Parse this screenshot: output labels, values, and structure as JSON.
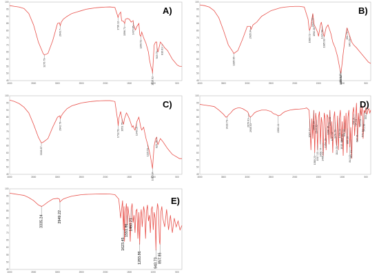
{
  "colors": {
    "spectrum": "#e8504a",
    "frame": "#b9b9b9",
    "text": "#000000"
  },
  "chart_data": [
    {
      "type": "line",
      "panel_label": "A)",
      "xlim": [
        4000,
        400
      ],
      "ylim": [
        45,
        100
      ],
      "x_ticks": [
        "4000",
        "3500",
        "3000",
        "2500",
        "2000",
        "1500",
        "1000",
        "500"
      ],
      "y_ticks": [
        "100",
        "95",
        "90",
        "85",
        "80",
        "75",
        "70",
        "65",
        "60",
        "55",
        "50",
        "45"
      ],
      "series": [
        {
          "x": [
            4000,
            3900,
            3800,
            3700,
            3600,
            3500,
            3400,
            3300,
            3276,
            3200,
            3100,
            3000,
            2960,
            2943,
            2920,
            2880,
            2800,
            2700,
            2600,
            2500,
            2400,
            2300,
            2200,
            2100,
            2000,
            1900,
            1800,
            1740,
            1736,
            1720,
            1680,
            1660,
            1620,
            1596,
            1580,
            1540,
            1500,
            1460,
            1420,
            1410,
            1390,
            1370,
            1340,
            1300,
            1280,
            1260,
            1240,
            1200,
            1150,
            1100,
            1080,
            1050,
            1020,
            1015,
            1000,
            980,
            950,
            925,
            920,
            900,
            850,
            800,
            760,
            700,
            650,
            600,
            550,
            500,
            450,
            400
          ],
          "y": [
            97.5,
            97,
            96.5,
            95.5,
            92,
            84,
            72,
            64,
            63,
            64,
            73,
            85,
            85.5,
            83.5,
            86,
            88,
            90,
            92,
            93,
            94,
            95,
            95.5,
            96,
            96.3,
            96.5,
            96.6,
            96.2,
            90,
            89,
            91,
            93,
            87,
            86.5,
            85,
            88,
            88.5,
            88,
            86,
            87,
            84,
            82,
            80.5,
            83,
            85,
            77,
            76,
            79,
            75,
            71,
            65,
            60,
            55,
            52,
            50,
            58,
            70,
            72,
            72,
            68,
            65,
            72,
            70,
            68,
            66,
            63,
            60,
            58,
            56,
            55,
            55
          ]
        }
      ],
      "peak_labels": [
        "3276.79",
        "2943.7",
        "1736.12",
        "1596.71",
        "1415.85",
        "1260.51",
        "1015.92",
        "919.76",
        "816.61"
      ]
    },
    {
      "type": "line",
      "panel_label": "B)",
      "xlim": [
        4000,
        400
      ],
      "ylim": [
        45,
        100
      ],
      "x_ticks": [
        "4000",
        "3500",
        "3000",
        "2500",
        "2000",
        "1500",
        "1000",
        "500"
      ],
      "y_ticks": [
        "100",
        "95",
        "90",
        "85",
        "80",
        "75",
        "70",
        "65",
        "60",
        "55",
        "50",
        "45"
      ],
      "series": [
        {
          "x": [
            4000,
            3900,
            3800,
            3700,
            3600,
            3500,
            3400,
            3300,
            3285,
            3200,
            3100,
            3000,
            2935,
            2920,
            2880,
            2800,
            2700,
            2600,
            2500,
            2400,
            2300,
            2200,
            2100,
            2000,
            1900,
            1800,
            1720,
            1700,
            1690,
            1660,
            1640,
            1620,
            1590,
            1560,
            1520,
            1500,
            1460,
            1440,
            1420,
            1400,
            1380,
            1340,
            1300,
            1260,
            1240,
            1200,
            1150,
            1100,
            1060,
            1030,
            1020,
            1000,
            980,
            950,
            920,
            900,
            880,
            860,
            840,
            800,
            760,
            700,
            650,
            600,
            550,
            500,
            450,
            400
          ],
          "y": [
            98,
            97.5,
            96.5,
            94,
            89,
            80,
            70,
            65,
            64,
            66,
            74,
            83,
            83,
            81,
            84,
            86,
            90,
            92,
            94,
            95,
            96,
            96.5,
            96.8,
            97,
            97,
            96.5,
            88,
            82,
            80,
            83,
            88,
            92,
            84,
            82,
            79,
            76,
            84,
            86,
            82,
            78,
            76,
            82,
            84,
            80,
            78,
            72,
            68,
            62,
            55,
            50,
            52,
            58,
            64,
            72,
            78,
            82,
            80,
            78,
            76,
            72,
            70,
            68,
            66,
            64,
            62,
            60,
            58,
            57
          ]
        }
      ],
      "peak_labels": [
        "3285.95",
        "2935.04",
        "1689.72",
        "1623.59",
        "1592.28",
        "1424.58",
        "1385.93",
        "1044.18",
        "1026.46",
        "1023.53",
        "894.73",
        "846.29"
      ]
    },
    {
      "type": "line",
      "panel_label": "C)",
      "xlim": [
        4000,
        400
      ],
      "ylim": [
        45,
        100
      ],
      "x_ticks": [
        "4000",
        "3500",
        "3000",
        "2500",
        "2000",
        "1500",
        "1000",
        "500"
      ],
      "y_ticks": [
        "100",
        "95",
        "90",
        "85",
        "80",
        "75",
        "70",
        "65",
        "60",
        "55",
        "50",
        "45"
      ],
      "series": [
        {
          "x": [
            4000,
            3900,
            3800,
            3700,
            3600,
            3500,
            3400,
            3338,
            3300,
            3200,
            3100,
            3000,
            2950,
            2942,
            2920,
            2880,
            2800,
            2700,
            2600,
            2500,
            2400,
            2300,
            2200,
            2100,
            2000,
            1900,
            1800,
            1740,
            1732,
            1720,
            1680,
            1660,
            1640,
            1620,
            1600,
            1560,
            1540,
            1500,
            1460,
            1440,
            1420,
            1400,
            1380,
            1360,
            1340,
            1300,
            1260,
            1240,
            1200,
            1150,
            1100,
            1060,
            1030,
            1015,
            1000,
            980,
            950,
            925,
            920,
            900,
            850,
            800,
            760,
            700,
            650,
            600,
            550,
            500,
            450,
            400
          ],
          "y": [
            97,
            96,
            94.5,
            92,
            88,
            80,
            71,
            67,
            67.5,
            70,
            78,
            85,
            86,
            84,
            86,
            88,
            91,
            93,
            94,
            95,
            95.5,
            96,
            96.3,
            96.5,
            96.6,
            96.6,
            96,
            82,
            79,
            84,
            89,
            85,
            82,
            80,
            84,
            88,
            87,
            84,
            80,
            78,
            79,
            77,
            76,
            79,
            82,
            85,
            78,
            76,
            78,
            70,
            64,
            58,
            52,
            49,
            56,
            65,
            70,
            71,
            68,
            66,
            70,
            68,
            66,
            63,
            61,
            59,
            58,
            57,
            56,
            56
          ]
        }
      ],
      "peak_labels": [
        "3336.87",
        "2942.79",
        "1732.51",
        "1651.75",
        "1349.15",
        "1115.53",
        "1015.84",
        "925.75"
      ]
    },
    {
      "type": "line",
      "panel_label": "D)",
      "xlim": [
        4000,
        400
      ],
      "ylim": [
        45,
        100
      ],
      "x_ticks": [
        "4000",
        "3500",
        "3000",
        "2500",
        "2000",
        "1500",
        "1000",
        "500"
      ],
      "y_ticks": [
        "100",
        "95",
        "90",
        "85",
        "80",
        "75",
        "70",
        "65",
        "60",
        "55",
        "50",
        "45"
      ],
      "series": [
        {
          "x": [
            4000,
            3900,
            3800,
            3700,
            3600,
            3500,
            3450,
            3420,
            3400,
            3350,
            3300,
            3250,
            3200,
            3150,
            3100,
            3050,
            3000,
            2980,
            2960,
            2940,
            2900,
            2850,
            2800,
            2700,
            2600,
            2500,
            2450,
            2400,
            2350,
            2300,
            2250,
            2200,
            2100,
            2000,
            1900,
            1800,
            1750,
            1700,
            1680,
            1660,
            1640,
            1620,
            1600,
            1580,
            1560,
            1540,
            1520,
            1500,
            1480,
            1460,
            1440,
            1420,
            1400,
            1380,
            1360,
            1340,
            1320,
            1300,
            1280,
            1260,
            1240,
            1220,
            1200,
            1180,
            1160,
            1140,
            1120,
            1100,
            1080,
            1060,
            1040,
            1020,
            1000,
            980,
            960,
            940,
            920,
            900,
            880,
            860,
            840,
            820,
            800,
            780,
            760,
            740,
            720,
            700,
            680,
            660,
            640,
            620,
            600,
            580,
            560,
            540,
            520,
            500,
            480,
            460,
            440,
            420,
            400
          ],
          "y": [
            94,
            93.5,
            93,
            92.5,
            90,
            87,
            85,
            85.5,
            86.5,
            88,
            90,
            91,
            91.5,
            91.5,
            91,
            90,
            89,
            88,
            86,
            85,
            86,
            88,
            89,
            90,
            90,
            89,
            87.5,
            87,
            86,
            86.5,
            88,
            89,
            90,
            90.5,
            90.7,
            91,
            91.5,
            90,
            80,
            62,
            84,
            70,
            90,
            60,
            88,
            82,
            62,
            85,
            89,
            66,
            85,
            80,
            58,
            88,
            84,
            62,
            87,
            85,
            66,
            90,
            70,
            82,
            60,
            84,
            89,
            72,
            65,
            86,
            62,
            84,
            90,
            68,
            82,
            58,
            86,
            74,
            88,
            60,
            85,
            90,
            64,
            78,
            56,
            88,
            92,
            72,
            84,
            95,
            68,
            88,
            78,
            92,
            86,
            93,
            70,
            90,
            88,
            92,
            87,
            90,
            91,
            88,
            90
          ]
        }
      ],
      "peak_labels": [
        "3428.79",
        "2976.01",
        "2930.03",
        "2350.41",
        "1687.47",
        "1600.16",
        "1580.23",
        "1544.02",
        "1517.22",
        "1456.74",
        "1408.31",
        "1354.29",
        "1296.15",
        "1261.06",
        "1217.42",
        "1151.59",
        "1114.03",
        "1058.54",
        "1015.49",
        "995.39",
        "951.95",
        "886.28",
        "841.02",
        "812.19",
        "755.31",
        "714.31",
        "686.91",
        "623.64",
        "571.34",
        "541.98",
        "503.27"
      ]
    },
    {
      "type": "line",
      "panel_label": "E)",
      "xlim": [
        4000,
        400
      ],
      "ylim": [
        45,
        100
      ],
      "x_ticks": [
        "4000",
        "3500",
        "3000",
        "2500",
        "2000",
        "1500",
        "1000",
        "500"
      ],
      "y_ticks": [
        "100",
        "95",
        "90",
        "85",
        "80",
        "75",
        "70",
        "65",
        "60",
        "55",
        "50",
        "45"
      ],
      "series": [
        {
          "x": [
            4000,
            3900,
            3800,
            3700,
            3600,
            3500,
            3400,
            3335,
            3300,
            3200,
            3100,
            3000,
            2960,
            2949,
            2920,
            2880,
            2800,
            2700,
            2600,
            2500,
            2400,
            2300,
            2200,
            2100,
            2000,
            1900,
            1800,
            1720,
            1680,
            1660,
            1640,
            1623,
            1610,
            1600,
            1580,
            1560,
            1545,
            1530,
            1500,
            1480,
            1460,
            1440,
            1420,
            1400,
            1380,
            1360,
            1340,
            1320,
            1300,
            1283,
            1270,
            1250,
            1230,
            1200,
            1180,
            1160,
            1140,
            1120,
            1100,
            1080,
            1060,
            1040,
            1020,
            1000,
            980,
            960,
            943,
            930,
            910,
            890,
            870,
            858,
            840,
            820,
            800,
            760,
            720,
            680,
            640,
            600,
            560,
            520,
            480,
            440,
            400
          ],
          "y": [
            97,
            96.5,
            96,
            95.5,
            94,
            92,
            89,
            88,
            88.5,
            91,
            93,
            93.5,
            93,
            91,
            92,
            93,
            94,
            95,
            95.5,
            96,
            96.2,
            96.3,
            96.4,
            96.5,
            96.5,
            96.4,
            96,
            93,
            80,
            86,
            92,
            72,
            88,
            64,
            84,
            90,
            75,
            88,
            80,
            64,
            86,
            90,
            77,
            82,
            70,
            85,
            86,
            66,
            84,
            62,
            80,
            86,
            74,
            88,
            84,
            66,
            85,
            89,
            78,
            82,
            70,
            86,
            88,
            72,
            84,
            80,
            58,
            82,
            90,
            86,
            64,
            62,
            84,
            88,
            80,
            74,
            86,
            72,
            82,
            70,
            80,
            74,
            78,
            72,
            75
          ]
        }
      ],
      "peak_labels": [
        "3335.24",
        "2949.22",
        "1623.45",
        "1551.86",
        "1460.21",
        "1283.86",
        "943.73",
        "857.85"
      ]
    }
  ]
}
